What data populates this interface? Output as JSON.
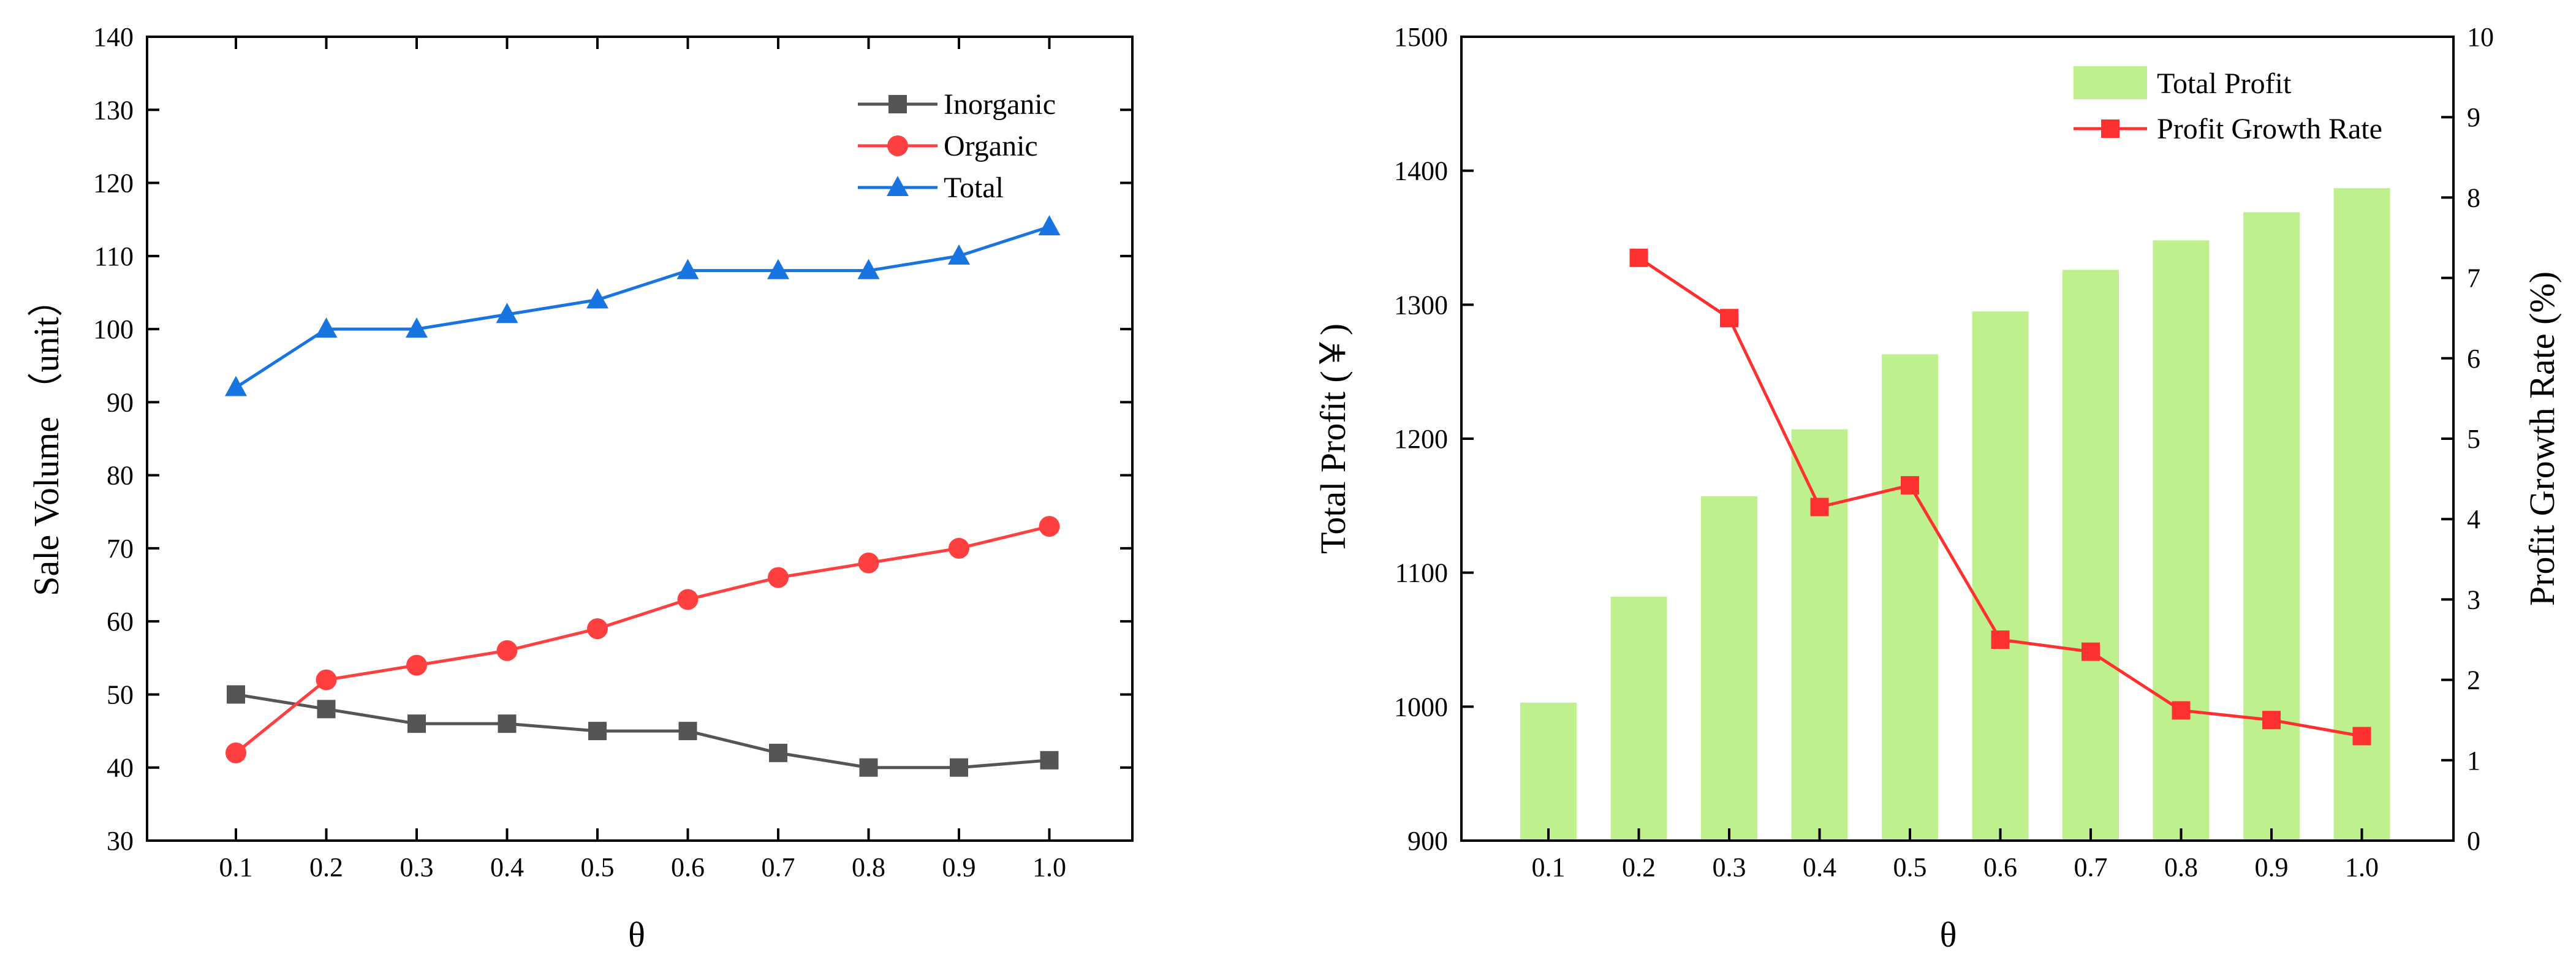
{
  "chart_data": [
    {
      "type": "line",
      "x": [
        0.1,
        0.2,
        0.3,
        0.4,
        0.5,
        0.6,
        0.7,
        0.8,
        0.9,
        1.0
      ],
      "x_tick_labels": [
        "0.1",
        "0.2",
        "0.3",
        "0.4",
        "0.5",
        "0.6",
        "0.7",
        "0.8",
        "0.9",
        "1.0"
      ],
      "y_ticks": [
        30,
        40,
        50,
        60,
        70,
        80,
        90,
        100,
        110,
        120,
        130,
        140
      ],
      "series": [
        {
          "name": "Inorganic",
          "marker": "square",
          "color": "#555555",
          "values": [
            50,
            48,
            46,
            46,
            45,
            45,
            42,
            40,
            40,
            41
          ]
        },
        {
          "name": "Organic",
          "marker": "circle",
          "color": "#ff4040",
          "values": [
            42,
            52,
            54,
            56,
            59,
            63,
            66,
            68,
            70,
            73
          ]
        },
        {
          "name": "Total",
          "marker": "triangle",
          "color": "#1874e0",
          "values": [
            92,
            100,
            100,
            102,
            104,
            108,
            108,
            108,
            110,
            114
          ]
        }
      ],
      "xlabel": "θ",
      "ylabel": "Sale Volume （unit）",
      "ylim": [
        30,
        140
      ],
      "legend": "top-right",
      "grid": false
    },
    {
      "type": "bar",
      "categories": [
        "0.1",
        "0.2",
        "0.3",
        "0.4",
        "0.5",
        "0.6",
        "0.7",
        "0.8",
        "0.9",
        "1.0"
      ],
      "series": [
        {
          "name": "Total Profit",
          "color": "#bff08e",
          "axis": "left",
          "values": [
            1003,
            1082,
            1157,
            1207,
            1263,
            1295,
            1326,
            1348,
            1369,
            1387
          ]
        },
        {
          "name": "Profit Growth Rate",
          "type": "line",
          "marker": "square",
          "color": "#ff3030",
          "axis": "right",
          "values": [
            null,
            7.25,
            6.5,
            4.15,
            4.42,
            2.5,
            2.35,
            1.62,
            1.5,
            1.3
          ]
        }
      ],
      "y_ticks": [
        900,
        1000,
        1100,
        1200,
        1300,
        1400,
        1500
      ],
      "y2_ticks": [
        0,
        1,
        2,
        3,
        4,
        5,
        6,
        7,
        8,
        9,
        10
      ],
      "xlabel": "θ",
      "ylabel": "Total Profit (￥)",
      "y2label": "Profit Growth Rate (%)",
      "ylim": [
        900,
        1500
      ],
      "y2lim": [
        0,
        10
      ],
      "legend": "top-right",
      "grid": false
    }
  ]
}
